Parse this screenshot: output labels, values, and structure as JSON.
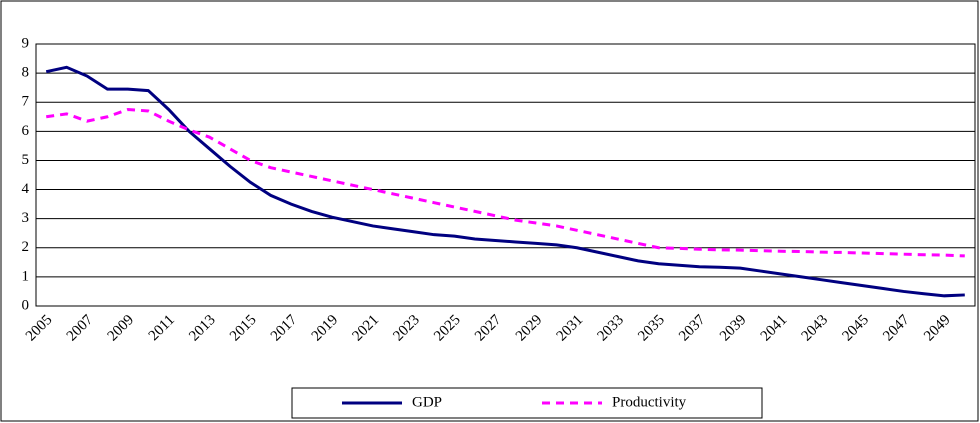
{
  "chart_data": {
    "type": "line",
    "categories": [
      "2005",
      null,
      "2007",
      null,
      "2009",
      null,
      "2011",
      null,
      "2013",
      null,
      "2015",
      null,
      "2017",
      null,
      "2019",
      null,
      "2021",
      null,
      "2023",
      null,
      "2025",
      null,
      "2027",
      null,
      "2029",
      null,
      "2031",
      null,
      "2033",
      null,
      "2035",
      null,
      "2037",
      null,
      "2039",
      null,
      "2041",
      null,
      "2043",
      null,
      "2045",
      null,
      "2047",
      null,
      "2049",
      null
    ],
    "series": [
      {
        "name": "GDP",
        "color": "#000080",
        "dash": false,
        "values": [
          8.05,
          8.2,
          7.9,
          7.45,
          7.45,
          7.4,
          6.75,
          6.0,
          5.4,
          4.8,
          4.25,
          3.8,
          3.5,
          3.25,
          3.05,
          2.9,
          2.75,
          2.65,
          2.55,
          2.45,
          2.4,
          2.3,
          2.25,
          2.2,
          2.15,
          2.1,
          2.0,
          1.85,
          1.7,
          1.55,
          1.45,
          1.4,
          1.35,
          1.33,
          1.3,
          1.2,
          1.1,
          1.0,
          0.9,
          0.8,
          0.7,
          0.6,
          0.5,
          0.42,
          0.35,
          0.38
        ]
      },
      {
        "name": "Productivity",
        "color": "#ff00ff",
        "dash": true,
        "values": [
          6.5,
          6.6,
          6.35,
          6.5,
          6.75,
          6.7,
          6.35,
          6.05,
          5.8,
          5.4,
          5.0,
          4.75,
          4.6,
          4.45,
          4.3,
          4.15,
          4.0,
          3.85,
          3.7,
          3.55,
          3.4,
          3.25,
          3.1,
          2.95,
          2.85,
          2.75,
          2.6,
          2.45,
          2.3,
          2.15,
          2.0,
          1.98,
          1.95,
          1.93,
          1.92,
          1.9,
          1.88,
          1.87,
          1.85,
          1.84,
          1.82,
          1.8,
          1.78,
          1.76,
          1.75,
          1.72
        ]
      }
    ],
    "ylim": [
      0,
      9
    ],
    "yticks": [
      0,
      1,
      2,
      3,
      4,
      5,
      6,
      7,
      8,
      9
    ],
    "grid": true,
    "legend": "bottom"
  }
}
